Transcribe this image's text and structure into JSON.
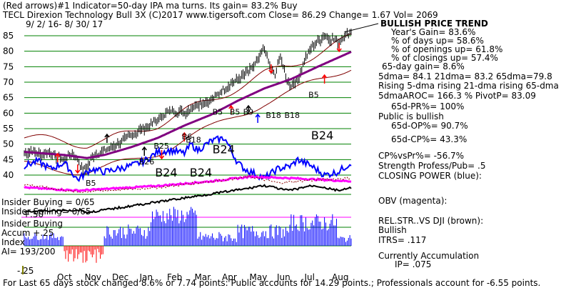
{
  "header": {
    "line1": "(Red arrows)#1 Indicator=50-day IPA ma turns. Its gain= 83.2% Buy",
    "line2": "TECL   Direxion Technology Bull 3X  (C)2017 www.tigersoft.com      Close=  86.29  Change= 1.67 Vol= 2069",
    "line3": "9/ 2/ 16-  8/ 30/ 17"
  },
  "footer": "For Last 65 days stock changed  8.6% or  7.74 points:  Public accounts for  14.29 points.;  Professionals account for -6.55 points.",
  "left_labels": {
    "insider_buying": "Insider Buying = 0/65",
    "insider_selling": "Insider Selling= 0/65",
    "plus50": "+.50",
    "insider_buying2": "Insider Buying",
    "accum": "Accum  +.25",
    "index": "Index",
    "ai": "AI= 193/200",
    "minus25": "-.25"
  },
  "right_panel": {
    "title": "BULLISH PRICE TREND",
    "lines": [
      "Year's Gain= 83.6%",
      "% of days up= 58.6%",
      "% of openings up= 61.8%",
      "% of closings up= 57.4%",
      "65-day gain= 8.6%",
      "5dma= 84.1 21dma= 83.2 65dma=79.8",
      "Rising 5-dma rising 21-dma rising 65-dma",
      "5dmaAROC= 166.3 %  PivotP= 83.09",
      "65d-PR%= 100%",
      "Public is bullish",
      "65d-OP%= 90.7%",
      "65d-CP%= 43.3%",
      "CP%vsPr%= -56.7%",
      "Strength Profess/Pub= .5",
      "CLOSING POWER (blue):",
      "OBV (magenta):",
      "REL.STR..VS DJI (brown):",
      "Bullish",
      "ITRS= .117",
      "Currently Accumulation",
      "IP=  .075"
    ]
  },
  "colors": {
    "price": "#000000",
    "ma65": "#800080",
    "band": "#800000",
    "closing_power": "#0000ff",
    "obv": "#ff00ff",
    "rel_str": "#8b0000",
    "accum_pos": "#0000ff",
    "accum_neg": "#ff0000",
    "arrow_red": "#ff0000",
    "grid": "#008000"
  },
  "chart_data": {
    "type": "line",
    "ylim": [
      35,
      90
    ],
    "y_ticks": [
      40,
      45,
      50,
      55,
      60,
      65,
      70,
      75,
      80,
      85
    ],
    "months": [
      "Oct",
      "Nov",
      "Dec",
      "Jan",
      "Feb",
      "Mar",
      "Apr",
      "May",
      "Jun",
      "Jul",
      "Aug"
    ],
    "price_anchors": [
      [
        0,
        47
      ],
      [
        6,
        48
      ],
      [
        12,
        46.5
      ],
      [
        18,
        47.5
      ],
      [
        24,
        46
      ],
      [
        30,
        45
      ],
      [
        36,
        47
      ],
      [
        40,
        45
      ],
      [
        44,
        41.5
      ],
      [
        47,
        42.5
      ],
      [
        52,
        46.5
      ],
      [
        60,
        48
      ],
      [
        70,
        50
      ],
      [
        80,
        53
      ],
      [
        90,
        55
      ],
      [
        100,
        58
      ],
      [
        110,
        61
      ],
      [
        120,
        60
      ],
      [
        130,
        63
      ],
      [
        140,
        64
      ],
      [
        150,
        68
      ],
      [
        160,
        71
      ],
      [
        170,
        74
      ],
      [
        175,
        77
      ],
      [
        180,
        81
      ],
      [
        185,
        74
      ],
      [
        188,
        72
      ],
      [
        192,
        79
      ],
      [
        196,
        71
      ],
      [
        200,
        69
      ],
      [
        205,
        71
      ],
      [
        210,
        77
      ],
      [
        215,
        81
      ],
      [
        220,
        83
      ],
      [
        225,
        85
      ],
      [
        230,
        84
      ],
      [
        235,
        83
      ],
      [
        240,
        85
      ],
      [
        245,
        86.3
      ]
    ],
    "ma65_anchors": [
      [
        0,
        47.5
      ],
      [
        30,
        46.5
      ],
      [
        47,
        45.5
      ],
      [
        60,
        46.5
      ],
      [
        80,
        49
      ],
      [
        100,
        52
      ],
      [
        120,
        56
      ],
      [
        140,
        59.5
      ],
      [
        160,
        64
      ],
      [
        180,
        68
      ],
      [
        200,
        71
      ],
      [
        220,
        75
      ],
      [
        245,
        79.8
      ]
    ],
    "band_width": 4.5,
    "signals": [
      {
        "text": "B5",
        "x": 46,
        "y": 36.5
      },
      {
        "text": "B26",
        "x": 86,
        "y": 43.5
      },
      {
        "text": "B25",
        "x": 97,
        "y": 48.5
      },
      {
        "text": "B6",
        "x": 118,
        "y": 51.5
      },
      {
        "text": "B18",
        "x": 121,
        "y": 50.5
      },
      {
        "text": "B5",
        "x": 141,
        "y": 59.5
      },
      {
        "text": "B5",
        "x": 154,
        "y": 59.5
      },
      {
        "text": "B9",
        "x": 164,
        "y": 59.5
      },
      {
        "text": "B18",
        "x": 181,
        "y": 58.5
      },
      {
        "text": "B18",
        "x": 195,
        "y": 58.5
      },
      {
        "text": "B5",
        "x": 213,
        "y": 65
      }
    ],
    "large_labels": [
      {
        "text": "B24",
        "x": 98,
        "y": 39.5
      },
      {
        "text": "B24",
        "x": 124,
        "y": 39.5
      },
      {
        "text": "B24",
        "x": 141,
        "y": 47
      },
      {
        "text": "B24",
        "x": 215,
        "y": 51.5
      }
    ]
  }
}
